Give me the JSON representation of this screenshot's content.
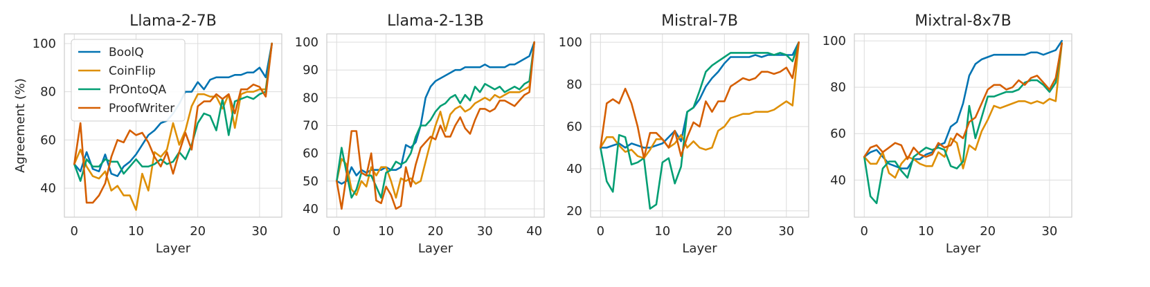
{
  "chart_data": [
    {
      "type": "line",
      "title": "Llama-2-7B",
      "xlabel": "Layer",
      "ylabel": "Agreement (%)",
      "xlim": [
        -1.6,
        33.6
      ],
      "ylim": [
        28,
        104
      ],
      "xticks": [
        0,
        10,
        20,
        30
      ],
      "yticks": [
        40,
        60,
        80,
        100
      ],
      "grid": true,
      "legend": "top-left",
      "x": [
        0,
        1,
        2,
        3,
        4,
        5,
        6,
        7,
        8,
        9,
        10,
        11,
        12,
        13,
        14,
        15,
        16,
        17,
        18,
        19,
        20,
        21,
        22,
        23,
        24,
        25,
        26,
        27,
        28,
        29,
        30,
        31,
        32
      ],
      "series": [
        {
          "name": "BoolQ",
          "color": "#0173b2",
          "values": [
            50,
            47,
            55,
            48,
            47,
            54,
            46,
            45,
            49,
            51,
            54,
            58,
            62,
            64,
            67,
            68,
            71,
            75,
            80,
            80,
            84,
            81,
            85,
            86,
            86,
            86,
            87,
            87,
            88,
            88,
            90,
            86,
            100
          ]
        },
        {
          "name": "CoinFlip",
          "color": "#de8f05",
          "values": [
            50,
            56,
            49,
            45,
            44,
            47,
            39,
            41,
            37,
            37,
            31,
            46,
            39,
            55,
            53,
            56,
            67,
            58,
            64,
            74,
            79,
            79,
            78,
            78,
            73,
            79,
            65,
            79,
            80,
            80,
            81,
            81,
            100
          ]
        },
        {
          "name": "PrOntoQA",
          "color": "#029e73",
          "values": [
            50,
            43,
            52,
            49,
            49,
            52,
            51,
            51,
            46,
            49,
            52,
            49,
            49,
            50,
            52,
            50,
            51,
            55,
            52,
            58,
            67,
            71,
            70,
            64,
            77,
            62,
            76,
            77,
            78,
            77,
            79,
            80,
            100
          ]
        },
        {
          "name": "ProofWriter",
          "color": "#d55e00",
          "values": [
            50,
            67,
            34,
            34,
            37,
            42,
            53,
            60,
            59,
            64,
            62,
            63,
            59,
            53,
            49,
            55,
            46,
            55,
            63,
            56,
            74,
            76,
            76,
            79,
            77,
            79,
            71,
            81,
            81,
            83,
            82,
            78,
            100
          ]
        }
      ]
    },
    {
      "type": "line",
      "title": "Llama-2-13B",
      "xlabel": "Layer",
      "ylabel": "",
      "xlim": [
        -2,
        42
      ],
      "ylim": [
        37,
        103
      ],
      "xticks": [
        0,
        10,
        20,
        30,
        40
      ],
      "yticks": [
        40,
        50,
        60,
        70,
        80,
        90,
        100
      ],
      "grid": true,
      "x": [
        0,
        1,
        2,
        3,
        4,
        5,
        6,
        7,
        8,
        9,
        10,
        11,
        12,
        13,
        14,
        15,
        16,
        17,
        18,
        19,
        20,
        21,
        22,
        23,
        24,
        25,
        26,
        27,
        28,
        29,
        30,
        31,
        32,
        33,
        34,
        35,
        36,
        37,
        38,
        39,
        40
      ],
      "series": [
        {
          "name": "BoolQ",
          "color": "#0173b2",
          "values": [
            50,
            49,
            50,
            55,
            52,
            54,
            53,
            54,
            54,
            54,
            55,
            54,
            54,
            55,
            63,
            62,
            64,
            70,
            80,
            84,
            86,
            87,
            88,
            89,
            90,
            90,
            91,
            91,
            91,
            91,
            92,
            91,
            91,
            91,
            91,
            92,
            92,
            93,
            94,
            95,
            100
          ]
        },
        {
          "name": "CoinFlip",
          "color": "#de8f05",
          "values": [
            50,
            58,
            56,
            47,
            45,
            50,
            48,
            55,
            52,
            55,
            55,
            50,
            44,
            51,
            50,
            51,
            49,
            50,
            57,
            64,
            70,
            75,
            68,
            74,
            76,
            77,
            75,
            76,
            78,
            79,
            80,
            79,
            81,
            80,
            81,
            82,
            82,
            82,
            83,
            84,
            100
          ]
        },
        {
          "name": "PrOntoQA",
          "color": "#029e73",
          "values": [
            50,
            62,
            53,
            44,
            47,
            53,
            52,
            52,
            48,
            44,
            53,
            54,
            57,
            56,
            57,
            60,
            66,
            70,
            70,
            72,
            75,
            77,
            78,
            80,
            81,
            78,
            81,
            79,
            84,
            82,
            85,
            84,
            83,
            84,
            82,
            83,
            84,
            83,
            85,
            86,
            100
          ]
        },
        {
          "name": "ProofWriter",
          "color": "#d55e00",
          "values": [
            50,
            40,
            52,
            68,
            68,
            53,
            52,
            60,
            43,
            42,
            48,
            45,
            40,
            41,
            55,
            48,
            56,
            62,
            64,
            66,
            65,
            70,
            66,
            66,
            70,
            73,
            69,
            67,
            72,
            76,
            76,
            75,
            76,
            79,
            79,
            78,
            77,
            79,
            81,
            82,
            100
          ]
        }
      ]
    },
    {
      "type": "line",
      "title": "Mistral-7B",
      "xlabel": "Layer",
      "ylabel": "",
      "xlim": [
        -1.6,
        33.6
      ],
      "ylim": [
        17,
        104
      ],
      "xticks": [
        0,
        10,
        20,
        30
      ],
      "yticks": [
        20,
        40,
        60,
        80,
        100
      ],
      "grid": true,
      "x": [
        0,
        1,
        2,
        3,
        4,
        5,
        6,
        7,
        8,
        9,
        10,
        11,
        12,
        13,
        14,
        15,
        16,
        17,
        18,
        19,
        20,
        21,
        22,
        23,
        24,
        25,
        26,
        27,
        28,
        29,
        30,
        31,
        32
      ],
      "series": [
        {
          "name": "BoolQ",
          "color": "#0173b2",
          "values": [
            50,
            50,
            51,
            52,
            50,
            52,
            51,
            50,
            50,
            51,
            52,
            55,
            58,
            53,
            67,
            69,
            73,
            79,
            83,
            86,
            90,
            93,
            93,
            93,
            93,
            94,
            93,
            94,
            94,
            94,
            94,
            94,
            100
          ]
        },
        {
          "name": "CoinFlip",
          "color": "#de8f05",
          "values": [
            50,
            55,
            55,
            51,
            48,
            49,
            46,
            45,
            49,
            54,
            54,
            50,
            52,
            56,
            50,
            53,
            50,
            49,
            50,
            58,
            60,
            64,
            65,
            66,
            66,
            67,
            67,
            67,
            68,
            70,
            72,
            70,
            100
          ]
        },
        {
          "name": "PrOntoQA",
          "color": "#029e73",
          "values": [
            50,
            34,
            29,
            56,
            55,
            42,
            43,
            45,
            21,
            23,
            43,
            45,
            33,
            41,
            67,
            69,
            77,
            86,
            89,
            91,
            93,
            95,
            95,
            95,
            95,
            95,
            95,
            95,
            94,
            95,
            94,
            91,
            100
          ]
        },
        {
          "name": "ProofWriter",
          "color": "#d55e00",
          "values": [
            50,
            71,
            73,
            71,
            78,
            71,
            60,
            45,
            57,
            57,
            54,
            50,
            58,
            46,
            55,
            62,
            60,
            72,
            67,
            72,
            72,
            79,
            81,
            83,
            82,
            83,
            86,
            86,
            85,
            86,
            88,
            83,
            100
          ]
        }
      ]
    },
    {
      "type": "line",
      "title": "Mixtral-8x7B",
      "xlabel": "Layer",
      "ylabel": "",
      "xlim": [
        -1.6,
        33.6
      ],
      "ylim": [
        24,
        103
      ],
      "xticks": [
        0,
        10,
        20,
        30
      ],
      "yticks": [
        40,
        60,
        80,
        100
      ],
      "grid": true,
      "x": [
        0,
        1,
        2,
        3,
        4,
        5,
        6,
        7,
        8,
        9,
        10,
        11,
        12,
        13,
        14,
        15,
        16,
        17,
        18,
        19,
        20,
        21,
        22,
        23,
        24,
        25,
        26,
        27,
        28,
        29,
        30,
        31,
        32
      ],
      "series": [
        {
          "name": "BoolQ",
          "color": "#0173b2",
          "values": [
            50,
            52,
            53,
            50,
            47,
            46,
            45,
            45,
            49,
            49,
            51,
            52,
            55,
            56,
            63,
            65,
            73,
            85,
            90,
            92,
            93,
            94,
            94,
            94,
            94,
            94,
            94,
            95,
            95,
            94,
            95,
            96,
            100
          ]
        },
        {
          "name": "CoinFlip",
          "color": "#de8f05",
          "values": [
            50,
            47,
            47,
            52,
            43,
            41,
            47,
            50,
            49,
            47,
            46,
            46,
            52,
            50,
            58,
            56,
            45,
            55,
            53,
            61,
            66,
            72,
            71,
            72,
            73,
            74,
            74,
            73,
            74,
            73,
            75,
            74,
            99
          ]
        },
        {
          "name": "PrOntoQA",
          "color": "#029e73",
          "values": [
            50,
            33,
            30,
            45,
            48,
            48,
            44,
            41,
            50,
            52,
            54,
            53,
            54,
            53,
            46,
            45,
            48,
            72,
            58,
            67,
            76,
            76,
            77,
            78,
            78,
            79,
            82,
            83,
            83,
            81,
            78,
            82,
            99
          ]
        },
        {
          "name": "ProofWriter",
          "color": "#d55e00",
          "values": [
            50,
            54,
            55,
            52,
            54,
            56,
            55,
            49,
            54,
            51,
            50,
            51,
            56,
            54,
            55,
            60,
            58,
            65,
            67,
            73,
            79,
            81,
            81,
            79,
            80,
            83,
            81,
            84,
            85,
            82,
            79,
            84,
            99
          ]
        }
      ]
    }
  ]
}
